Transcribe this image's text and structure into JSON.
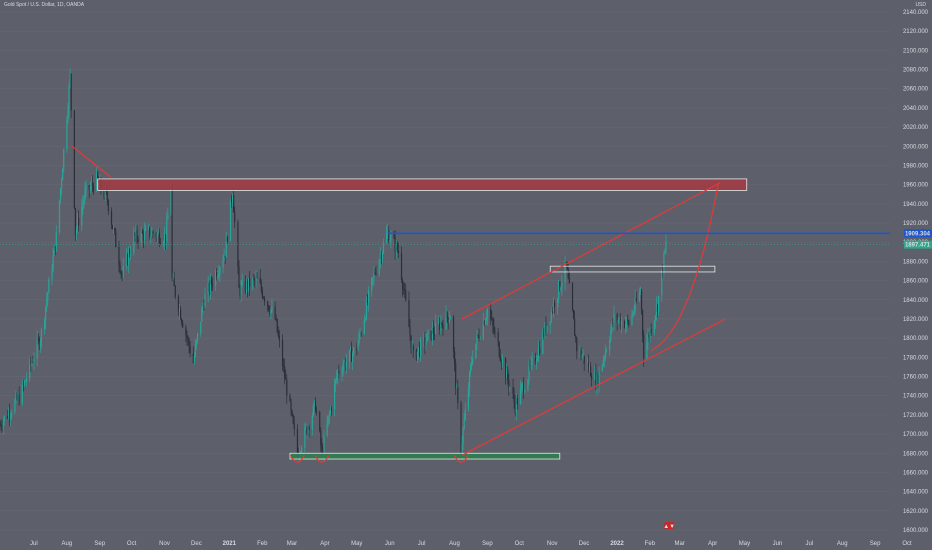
{
  "header": {
    "symbol_title": "Gold Spot / U.S. Dollar, 1D, OANDA",
    "currency": "USD"
  },
  "colors": {
    "background": "#5d606b",
    "candle_up": "#26a69a",
    "candle_down": "#2a2e39",
    "trendline": "#e53935",
    "resistance_fill": "#a33a43",
    "support_fill": "#2e7d4f",
    "price_line": "#1e56c9",
    "current_price": "#2ea88a"
  },
  "chart_data": {
    "type": "candlestick",
    "title": "Gold Spot / U.S. Dollar, 1D, OANDA",
    "ylim": [
      1600,
      2160
    ],
    "yticks": [
      1600,
      1620,
      1640,
      1660,
      1680,
      1700,
      1720,
      1740,
      1760,
      1780,
      1800,
      1820,
      1840,
      1860,
      1880,
      1900,
      1920,
      1940,
      1960,
      1980,
      2000,
      2020,
      2040,
      2060,
      2080,
      2100,
      2120,
      2140
    ],
    "ytick_labels": [
      "1600.000",
      "1620.000",
      "1640.000",
      "1660.000",
      "1680.000",
      "1700.000",
      "1720.000",
      "1740.000",
      "1760.000",
      "1780.000",
      "1800.000",
      "1820.000",
      "1840.000",
      "1860.000",
      "1880.000",
      "1900.000",
      "1920.000",
      "1940.000",
      "1960.000",
      "1980.000",
      "2000.000",
      "2020.000",
      "2040.000",
      "2060.000",
      "2080.000",
      "2100.000",
      "2120.000",
      "2140.000"
    ],
    "x_labels": [
      {
        "label": "Jul",
        "d": "2020-07-01"
      },
      {
        "label": "Aug",
        "d": "2020-08-01"
      },
      {
        "label": "Sep",
        "d": "2020-09-01"
      },
      {
        "label": "Oct",
        "d": "2020-10-01"
      },
      {
        "label": "Nov",
        "d": "2020-11-01"
      },
      {
        "label": "Dec",
        "d": "2020-12-01"
      },
      {
        "label": "2021",
        "d": "2021-01-01",
        "bold": true
      },
      {
        "label": "Feb",
        "d": "2021-02-01"
      },
      {
        "label": "Mar",
        "d": "2021-03-01"
      },
      {
        "label": "Apr",
        "d": "2021-04-01"
      },
      {
        "label": "May",
        "d": "2021-05-01"
      },
      {
        "label": "Jun",
        "d": "2021-06-01"
      },
      {
        "label": "Jul",
        "d": "2021-07-01"
      },
      {
        "label": "Aug",
        "d": "2021-08-01"
      },
      {
        "label": "Sep",
        "d": "2021-09-01"
      },
      {
        "label": "Oct",
        "d": "2021-10-01"
      },
      {
        "label": "Nov",
        "d": "2021-11-01"
      },
      {
        "label": "Dec",
        "d": "2021-12-01"
      },
      {
        "label": "2022",
        "d": "2022-01-01",
        "bold": true
      },
      {
        "label": "Feb",
        "d": "2022-02-01"
      },
      {
        "label": "Mar",
        "d": "2022-03-01"
      },
      {
        "label": "Apr",
        "d": "2022-04-01"
      },
      {
        "label": "May",
        "d": "2022-05-01"
      },
      {
        "label": "Jun",
        "d": "2022-06-01"
      },
      {
        "label": "Jul",
        "d": "2022-07-01"
      },
      {
        "label": "Aug",
        "d": "2022-08-01"
      },
      {
        "label": "Sep",
        "d": "2022-09-01"
      },
      {
        "label": "Oct",
        "d": "2022-10-01"
      }
    ],
    "price_path": [
      [
        "2020-06-01",
        1710
      ],
      [
        "2020-06-20",
        1740
      ],
      [
        "2020-07-10",
        1805
      ],
      [
        "2020-07-24",
        1905
      ],
      [
        "2020-08-06",
        2072
      ],
      [
        "2020-08-11",
        1910
      ],
      [
        "2020-08-20",
        1950
      ],
      [
        "2020-08-31",
        1965
      ],
      [
        "2020-09-10",
        1945
      ],
      [
        "2020-09-24",
        1865
      ],
      [
        "2020-10-05",
        1905
      ],
      [
        "2020-10-20",
        1910
      ],
      [
        "2020-11-04",
        1905
      ],
      [
        "2020-11-09",
        1960
      ],
      [
        "2020-11-10",
        1860
      ],
      [
        "2020-11-30",
        1775
      ],
      [
        "2020-12-10",
        1840
      ],
      [
        "2020-12-30",
        1890
      ],
      [
        "2021-01-06",
        1955
      ],
      [
        "2021-01-12",
        1850
      ],
      [
        "2021-01-29",
        1860
      ],
      [
        "2021-02-15",
        1820
      ],
      [
        "2021-03-08",
        1680
      ],
      [
        "2021-03-25",
        1730
      ],
      [
        "2021-03-31",
        1680
      ],
      [
        "2021-04-15",
        1765
      ],
      [
        "2021-05-03",
        1790
      ],
      [
        "2021-05-20",
        1870
      ],
      [
        "2021-06-01",
        1910
      ],
      [
        "2021-06-11",
        1890
      ],
      [
        "2021-06-25",
        1780
      ],
      [
        "2021-07-12",
        1805
      ],
      [
        "2021-07-30",
        1825
      ],
      [
        "2021-08-09",
        1685
      ],
      [
        "2021-08-20",
        1785
      ],
      [
        "2021-09-03",
        1830
      ],
      [
        "2021-09-29",
        1730
      ],
      [
        "2021-10-20",
        1785
      ],
      [
        "2021-11-16",
        1875
      ],
      [
        "2021-11-26",
        1790
      ],
      [
        "2021-12-15",
        1755
      ],
      [
        "2021-12-31",
        1820
      ],
      [
        "2022-01-14",
        1815
      ],
      [
        "2022-01-25",
        1850
      ],
      [
        "2022-01-28",
        1785
      ],
      [
        "2022-02-10",
        1835
      ],
      [
        "2022-02-18",
        1898
      ]
    ],
    "current_price": 1897.471,
    "current_price_label": "1897.471",
    "horizontal_line": {
      "price": 1909.304,
      "label": "1909.304",
      "start": "2021-06-01"
    },
    "zones": [
      {
        "name": "resistance",
        "from": "2020-09-01",
        "to": "2022-05-05",
        "low": 1954,
        "high": 1966
      },
      {
        "name": "box",
        "from": "2021-11-01",
        "to": "2022-04-05",
        "low": 1869,
        "high": 1875
      },
      {
        "name": "support",
        "from": "2021-03-01",
        "to": "2021-11-10",
        "low": 1674,
        "high": 1680
      }
    ],
    "trendlines": [
      {
        "from": [
          "2020-08-08",
          2000
        ],
        "to": [
          "2020-09-13",
          1968
        ]
      },
      {
        "from": [
          "2021-08-10",
          1820
        ],
        "to": [
          "2022-04-10",
          1962
        ]
      },
      {
        "from": [
          "2021-08-10",
          1678
        ],
        "to": [
          "2022-04-15",
          1820
        ]
      }
    ],
    "projection_curve": {
      "start": [
        "2022-02-04",
        1787
      ],
      "end": [
        "2022-04-08",
        1960
      ]
    },
    "bottom_markers": [
      "2021-03-08",
      "2021-03-31",
      "2021-08-09"
    ],
    "arrow_marker": {
      "d": "2022-02-21",
      "label": "▲▼"
    }
  }
}
